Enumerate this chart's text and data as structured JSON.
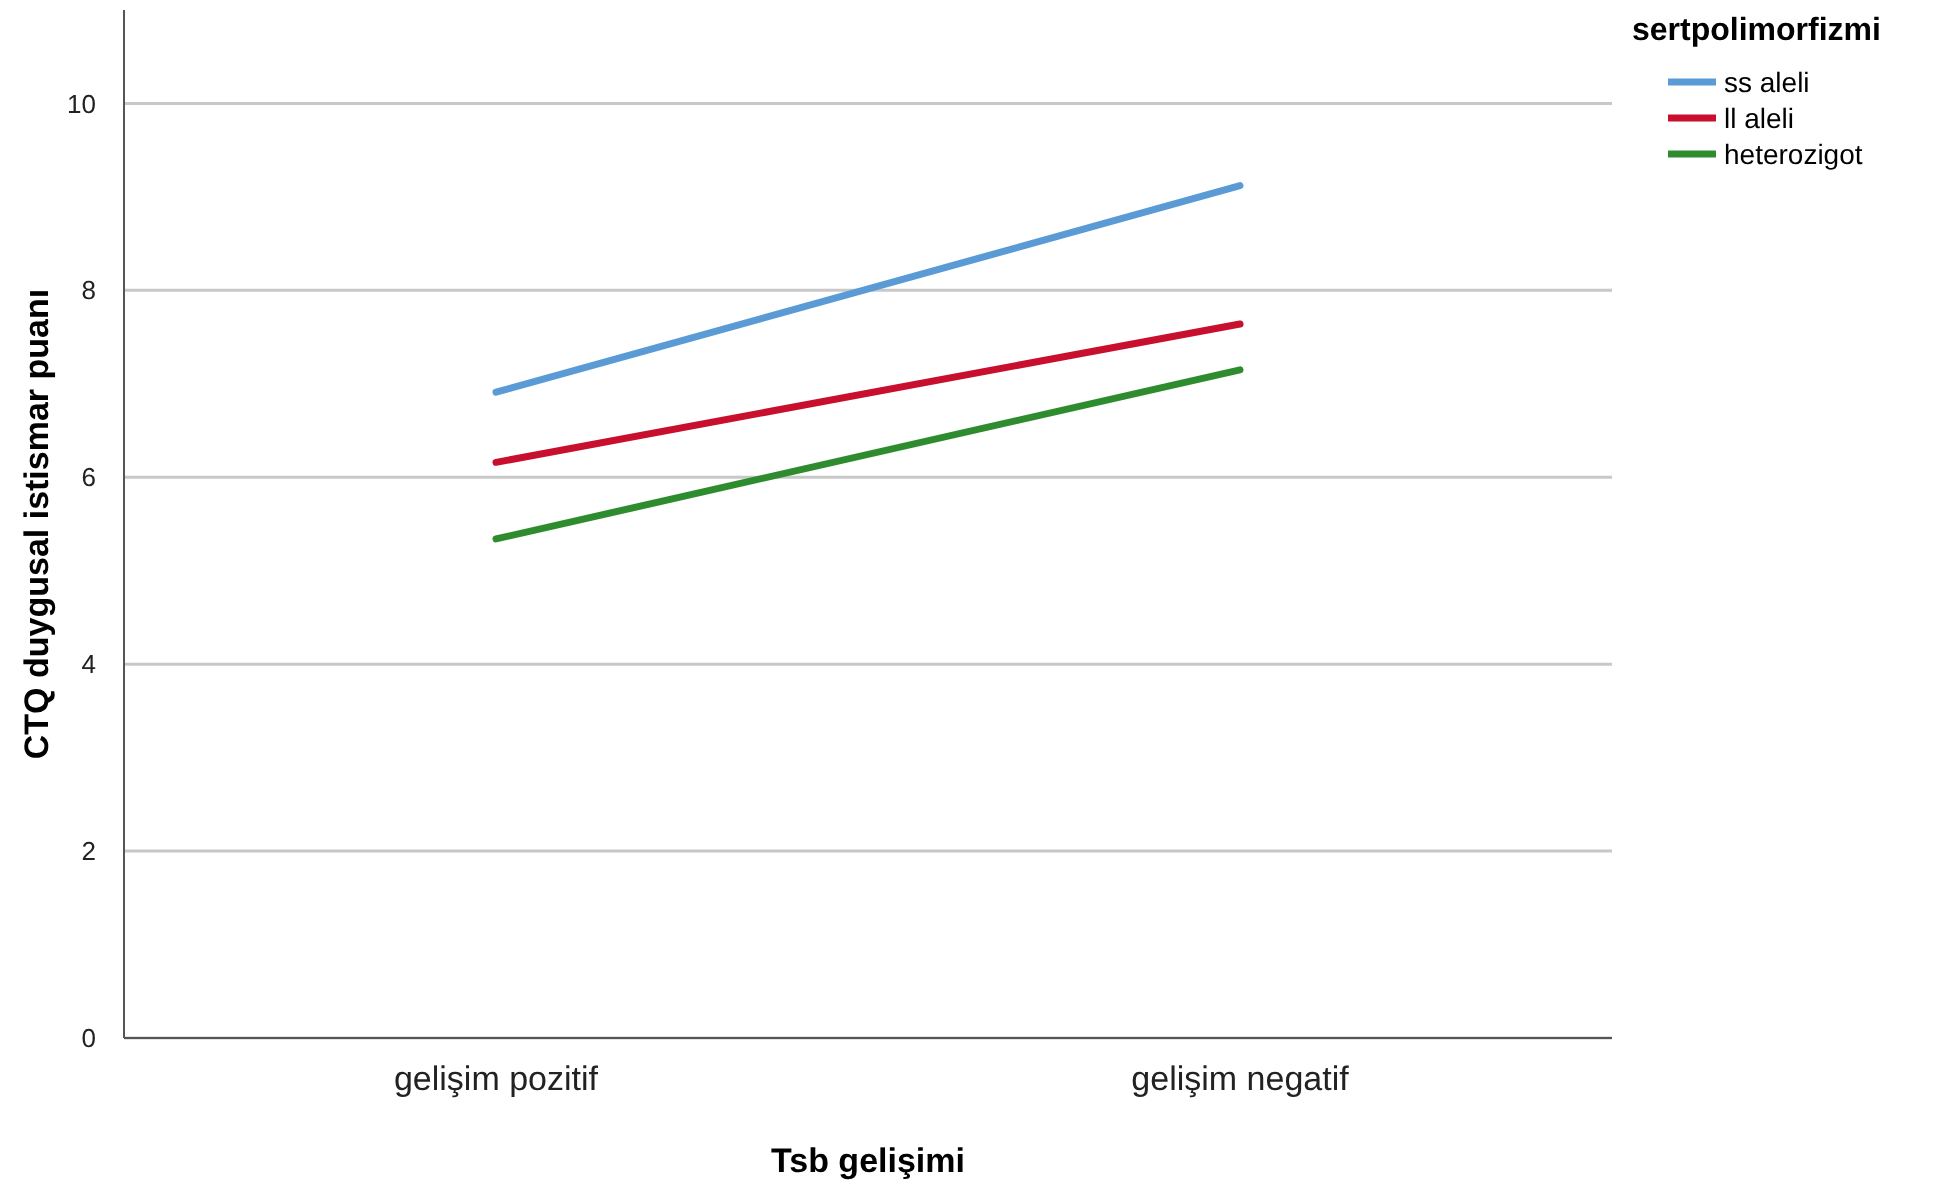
{
  "chart_data": {
    "type": "line",
    "xlabel": "Tsb gelişimi",
    "ylabel": "CTQ duygusal istismar puanı",
    "legend_title": "sertpolimorfizmi",
    "categories": [
      "gelişim pozitif",
      "gelişim negatif"
    ],
    "series": [
      {
        "name": "ss aleli",
        "color": "#5b9bd5",
        "values": [
          6.91,
          9.12
        ]
      },
      {
        "name": "ll aleli",
        "color": "#c8102e",
        "values": [
          6.16,
          7.64
        ]
      },
      {
        "name": "heterozigot",
        "color": "#2e8b2e",
        "values": [
          5.34,
          7.15
        ]
      }
    ],
    "ylim": [
      0,
      11
    ],
    "yticks": [
      0,
      2,
      4,
      6,
      8,
      10
    ],
    "grid": "y",
    "legend": "top right",
    "marker": "none",
    "line_style": "solid"
  }
}
